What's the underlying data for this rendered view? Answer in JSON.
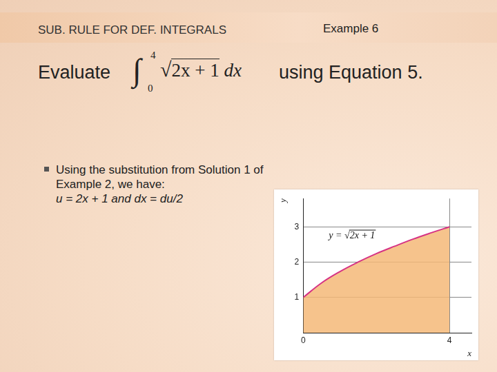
{
  "slide": {
    "header": "SUB. RULE FOR DEF. INTEGRALS",
    "example": "Example 6",
    "prompt": "Evaluate",
    "integral": {
      "sign": "∫",
      "lower": 0,
      "upper": 4,
      "radical": "√",
      "integrand": "2x + 1",
      "differential": "dx"
    },
    "suffix": "using Equation 5.",
    "bullet": {
      "text": "Using the substitution from Solution 1 of Example 2, we have:",
      "formula": "u = 2x + 1 and dx = du/2"
    }
  },
  "chart_data": {
    "type": "area",
    "x_label": "x",
    "y_label": "y",
    "x": [
      0,
      0.5,
      1,
      1.5,
      2,
      2.5,
      3,
      3.5,
      4
    ],
    "values": [
      1,
      1.41,
      1.73,
      2,
      2.24,
      2.45,
      2.65,
      2.83,
      3
    ],
    "color": "#d63384",
    "xlim": [
      0,
      4.6
    ],
    "xticks": [
      0,
      4
    ],
    "ylim": [
      0,
      3.8
    ],
    "yticks": [
      1,
      2,
      3
    ],
    "grid": true,
    "annotation": {
      "text": "y = √2x + 1",
      "x": 0.7,
      "y": 2.75
    }
  }
}
